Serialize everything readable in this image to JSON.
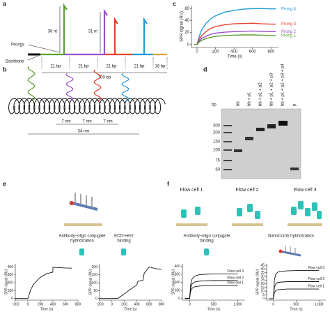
{
  "panel_labels": [
    "a",
    "b",
    "c",
    "d",
    "e",
    "f"
  ],
  "diagram_a": {
    "prong_lengths": [
      "36 nt",
      "31 nt"
    ],
    "prongs": "Prongs",
    "backbone": "Backbone",
    "segments": [
      "21 bp",
      "21 bp",
      "21 bp",
      "21 bp",
      "16 bp"
    ],
    "total": "100 bp"
  },
  "diagram_b": {
    "spacings": [
      "7 nm",
      "7 nm",
      "7 nm"
    ],
    "total": "34 nm"
  },
  "gel_d": {
    "bp_label": "bp",
    "lanes": [
      "bb",
      "bb + p1",
      "bb + p1 + p2",
      "bb + p1 + p2 + p3",
      "bb + p1 + p2 + p3 + p4",
      "p"
    ],
    "markers": [
      "300",
      "200",
      "150",
      "100",
      "75",
      "50"
    ]
  },
  "panel_e": {
    "steps": [
      [
        "Antibody–oligo conjugate",
        "hybridization"
      ],
      [
        "ECD-Her2",
        "binding"
      ]
    ]
  },
  "panel_f": {
    "flow_cells": [
      "Flow cell 1",
      "Flow cell 2",
      "Flow cell 3"
    ],
    "steps": [
      [
        "Antibody–oligo conjugate",
        "binding"
      ],
      [
        "NanoComb hybridization"
      ]
    ]
  },
  "chart_data": [
    {
      "type": "line",
      "x_label": "Time (s)",
      "y_label": "SPR signal (RU)",
      "legend": "right",
      "x": [
        -30,
        0,
        25,
        50,
        100,
        150,
        200,
        300,
        400,
        500,
        600,
        700,
        800,
        850
      ],
      "series": [
        {
          "name": "Prong 4",
          "color": "#1f9ad8",
          "values": [
            0,
            0,
            14,
            24,
            36,
            43,
            48,
            54,
            57,
            59,
            60,
            60,
            59.5,
            59.5
          ]
        },
        {
          "name": "Prong 3",
          "color": "#e5402b",
          "values": [
            0,
            0,
            9,
            15,
            22,
            27,
            30,
            33,
            34.5,
            35,
            35.5,
            34.5,
            34,
            34
          ]
        },
        {
          "name": "Prong 2",
          "color": "#9b4fc9",
          "values": [
            0,
            0,
            6,
            10,
            14,
            17,
            19,
            20.5,
            21.5,
            22,
            22.5,
            22,
            21.5,
            21.5
          ]
        },
        {
          "name": "Prong 1",
          "color": "#5aa02c",
          "values": [
            0,
            0,
            4,
            7,
            10,
            12,
            13.5,
            15,
            15.5,
            16,
            16,
            15.5,
            15,
            15
          ]
        }
      ],
      "xlim": [
        -60,
        880
      ],
      "ylim": [
        -5,
        65
      ],
      "xticks": [
        0,
        200,
        400,
        600,
        800
      ],
      "yticks": [
        0,
        20,
        40,
        60
      ]
    },
    {
      "type": "line",
      "x_label": "Time (s)",
      "y_label": "SPR signal (RU)",
      "x": [
        -200,
        0,
        50,
        100,
        200,
        300,
        399,
        400,
        420,
        500,
        600,
        700
      ],
      "series": [
        {
          "color": "#111111",
          "values": [
            0,
            0,
            120,
            190,
            270,
            315,
            335,
            395,
            395,
            392,
            388,
            385
          ]
        }
      ],
      "xlim": [
        -200,
        800
      ],
      "ylim": [
        -20,
        440
      ],
      "xticks": [
        {
          "value": -200,
          "label": "−200"
        },
        0,
        200,
        400,
        600,
        800
      ],
      "yticks": [
        0,
        100,
        200,
        300,
        400
      ]
    },
    {
      "type": "line",
      "x_label": "Time (s)",
      "y_label": "SPR signal (RU)",
      "x": [
        -200,
        0,
        100,
        200,
        300,
        400,
        420,
        500,
        520,
        600,
        700,
        800
      ],
      "series": [
        {
          "color": "#111111",
          "values": [
            0,
            0,
            2,
            30,
            60,
            85,
            110,
            115,
            160,
            200,
            190,
            185
          ]
        }
      ],
      "xlim": [
        -200,
        800
      ],
      "ylim": [
        -10,
        220
      ],
      "xticks": [
        {
          "value": -200,
          "label": "−200"
        },
        0,
        200,
        400,
        600,
        800
      ],
      "yticks": [
        0,
        50,
        100,
        150,
        200
      ]
    },
    {
      "type": "line",
      "x_label": "Time (s)",
      "y_label": "SPR signal (RU)",
      "legend": "end",
      "x": [
        -100,
        0,
        20,
        50,
        100,
        200,
        300,
        500,
        700,
        1000
      ],
      "series": [
        {
          "name": "Flow cell 3",
          "color": "#111111",
          "values": [
            0,
            0,
            170,
            240,
            275,
            295,
            300,
            305,
            305,
            305
          ]
        },
        {
          "name": "Flow cell 2",
          "color": "#111111",
          "values": [
            0,
            0,
            130,
            180,
            205,
            215,
            220,
            222,
            222,
            222
          ]
        },
        {
          "name": "Flow cell 1",
          "color": "#111111",
          "values": [
            0,
            0,
            90,
            125,
            145,
            155,
            158,
            160,
            160,
            160
          ]
        }
      ],
      "xlim": [
        -150,
        1150
      ],
      "ylim": [
        -20,
        430
      ],
      "xticks": [
        0,
        500,
        {
          "value": 1000,
          "label": "1,000"
        }
      ],
      "yticks": [
        0,
        100,
        200,
        300,
        400
      ]
    },
    {
      "type": "line",
      "x_label": "Time (s)",
      "y_label": "SPR signal (RU)",
      "legend": "end",
      "x": [
        -100,
        0,
        20,
        50,
        100,
        200,
        300,
        500,
        700,
        1000
      ],
      "series": [
        {
          "name": "Flow cell 3",
          "color": "#111111",
          "values": [
            0,
            0,
            25,
            33,
            36,
            37,
            37.5,
            38,
            38,
            38
          ]
        },
        {
          "name": "Flow cell 2",
          "color": "#111111",
          "values": [
            0,
            0,
            15,
            20,
            22,
            22.5,
            23,
            23,
            23,
            23
          ]
        },
        {
          "name": "Flow cell 1",
          "color": "#111111",
          "values": [
            0,
            0,
            8,
            11,
            12,
            12.5,
            13,
            13,
            13,
            13
          ]
        }
      ],
      "xlim": [
        -150,
        1150
      ],
      "ylim": [
        -2,
        47
      ],
      "xticks": [
        0,
        500,
        {
          "value": 1000,
          "label": "1,000"
        }
      ],
      "yticks": [
        0,
        5,
        10,
        15,
        20,
        25,
        30,
        35,
        40,
        45
      ]
    }
  ]
}
